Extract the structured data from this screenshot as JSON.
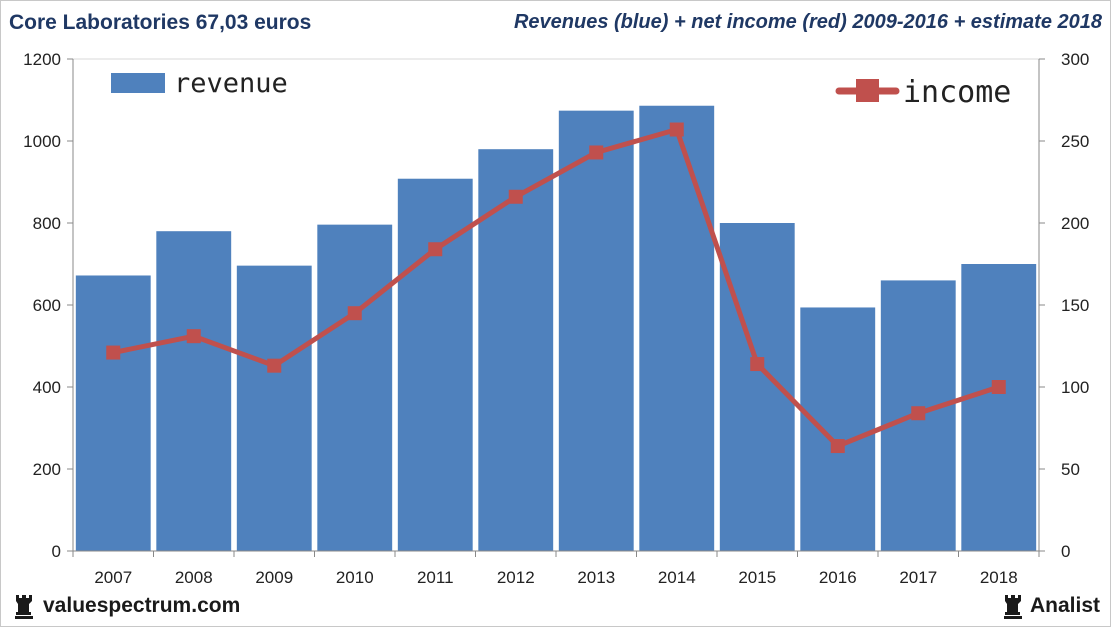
{
  "header": {
    "left_title": "Core Laboratories 67,03 euros",
    "right_title": "Revenues (blue) + net income (red) 2009-2016 + estimate 2018"
  },
  "footer": {
    "left_brand": "valuespectrum.com",
    "right_brand": "Analist",
    "left_icon": "chess-rook-icon",
    "right_icon": "chess-rook-icon"
  },
  "chart_data": {
    "type": "bar",
    "title": "Revenues (blue) + net income (red) 2009-2016 + estimate 2018",
    "categories": [
      "2007",
      "2008",
      "2009",
      "2010",
      "2011",
      "2012",
      "2013",
      "2014",
      "2015",
      "2016",
      "2017",
      "2018"
    ],
    "series": [
      {
        "name": "revenue",
        "type": "bar",
        "axis": "left",
        "color": "#4f81bd",
        "values": [
          672,
          780,
          696,
          796,
          908,
          980,
          1074,
          1086,
          800,
          594,
          660,
          700
        ]
      },
      {
        "name": "income",
        "type": "line",
        "axis": "right",
        "color": "#c0504d",
        "values": [
          121,
          131,
          113,
          145,
          184,
          216,
          243,
          257,
          114,
          64,
          84,
          100
        ]
      }
    ],
    "left_axis": {
      "min": 0,
      "max": 1200,
      "ticks": [
        0,
        200,
        400,
        600,
        800,
        1000,
        1200
      ]
    },
    "right_axis": {
      "min": 0,
      "max": 300,
      "ticks": [
        0,
        50,
        100,
        150,
        200,
        250,
        300
      ]
    },
    "legend": [
      {
        "label": "revenue",
        "position": "top-left"
      },
      {
        "label": "income",
        "position": "top-right"
      }
    ],
    "grid": false
  }
}
